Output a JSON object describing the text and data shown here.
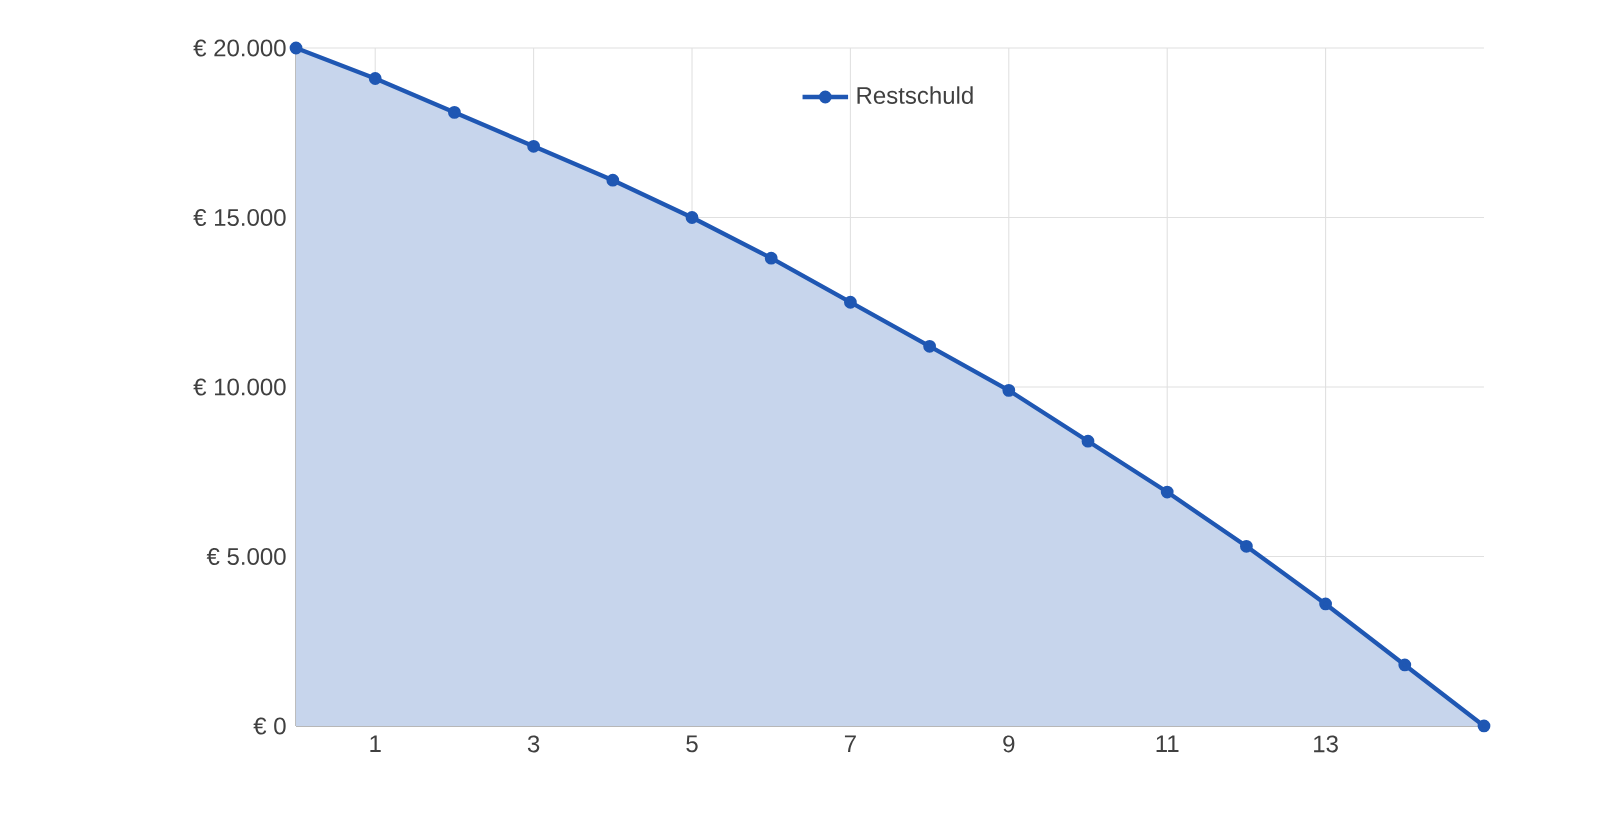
{
  "chart_data": {
    "type": "area",
    "x": [
      0,
      1,
      2,
      3,
      4,
      5,
      6,
      7,
      8,
      9,
      10,
      11,
      12,
      13,
      14,
      15
    ],
    "series": [
      {
        "name": "Restschuld",
        "color": "#1f57b3",
        "values": [
          20000,
          19100,
          18100,
          17100,
          16100,
          15000,
          13800,
          12500,
          11200,
          9900,
          8400,
          6900,
          5300,
          3600,
          1800,
          0
        ]
      }
    ],
    "xlim": [
      0,
      15
    ],
    "xticks": [
      1,
      3,
      5,
      7,
      9,
      11,
      13
    ],
    "ylim": [
      0,
      20000
    ],
    "yticks": [
      {
        "value": 0,
        "label": "€ 0"
      },
      {
        "value": 5000,
        "label": "€ 5.000"
      },
      {
        "value": 10000,
        "label": "€ 10.000"
      },
      {
        "value": 15000,
        "label": "€ 15.000"
      },
      {
        "value": 20000,
        "label": "€ 20.000"
      }
    ],
    "grid": true,
    "legend": "top",
    "marker": "circle",
    "line_style": "solid"
  }
}
